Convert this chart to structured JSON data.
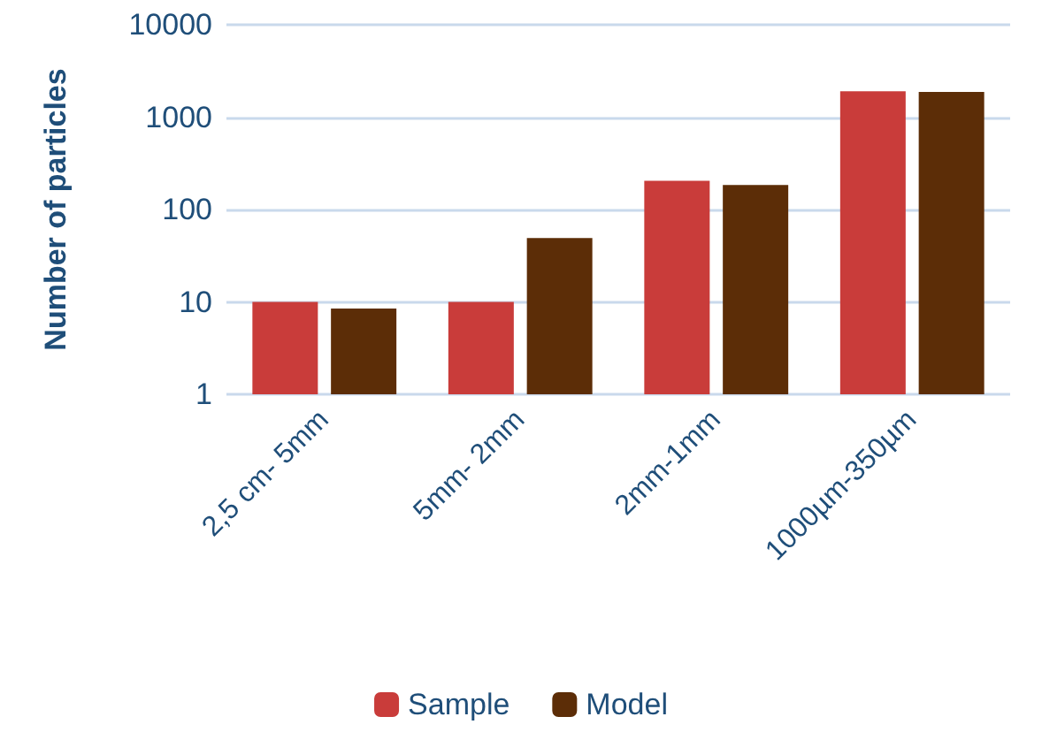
{
  "chart_data": {
    "type": "bar",
    "ylabel": "Number of particles",
    "categories": [
      "2,5 cm- 5mm",
      "5mm- 2mm",
      "2mm-1mm",
      "1000µm-350µm"
    ],
    "series": [
      {
        "name": "Sample",
        "color": "#c93c3a",
        "values": [
          10,
          10,
          205,
          1910
        ]
      },
      {
        "name": "Model",
        "color": "#5c2d07",
        "values": [
          8.5,
          49,
          184,
          1870
        ]
      }
    ],
    "log": true,
    "ylim": [
      1,
      10000
    ],
    "yticks": [
      1,
      10,
      100,
      1000,
      10000
    ],
    "grid": "y",
    "legend": "bottom"
  }
}
